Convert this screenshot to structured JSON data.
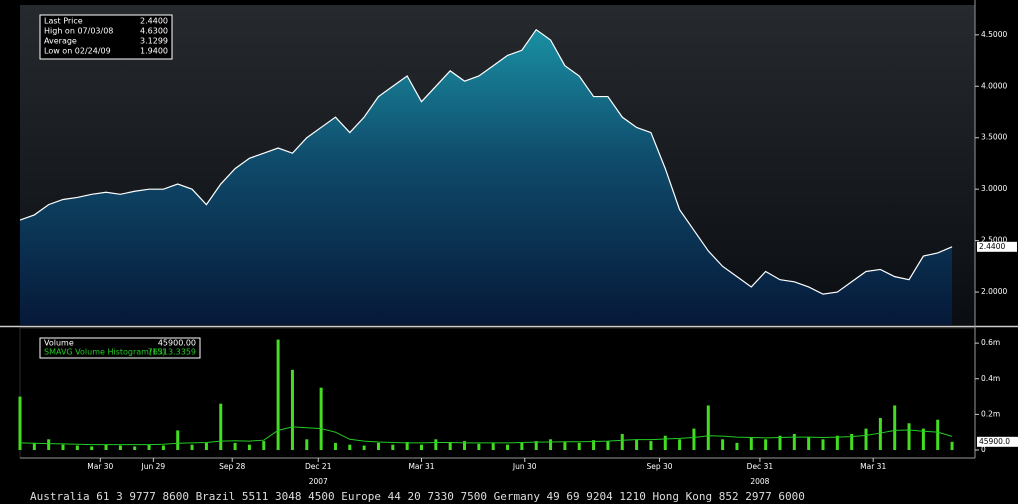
{
  "chart_data": [
    {
      "type": "area",
      "color": "#ffffff",
      "values": [
        2.7,
        2.75,
        2.85,
        2.9,
        2.92,
        2.95,
        2.97,
        2.95,
        2.98,
        3.0,
        3.0,
        3.05,
        3.0,
        2.85,
        3.05,
        3.2,
        3.3,
        3.35,
        3.4,
        3.35,
        3.5,
        3.6,
        3.7,
        3.55,
        3.7,
        3.9,
        4.0,
        4.1,
        3.85,
        4.0,
        4.15,
        4.05,
        4.1,
        4.2,
        4.3,
        4.35,
        4.55,
        4.45,
        4.2,
        4.1,
        3.9,
        3.9,
        3.7,
        3.6,
        3.55,
        3.2,
        2.8,
        2.6,
        2.4,
        2.25,
        2.15,
        2.05,
        2.2,
        2.12,
        2.1,
        2.05,
        1.98,
        2.0,
        2.1,
        2.2,
        2.22,
        2.15,
        2.12,
        2.35,
        2.38,
        2.44
      ],
      "xlim": [
        0,
        66.6
      ],
      "ylim": [
        1.68,
        4.79
      ],
      "yticks": [
        {
          "value": 2.0,
          "label": "2.0000"
        },
        {
          "value": 2.5,
          "label": "2.5000"
        },
        {
          "value": 3.0,
          "label": "3.0000"
        },
        {
          "value": 3.5,
          "label": "3.5000"
        },
        {
          "value": 4.0,
          "label": "4.0000"
        },
        {
          "value": 4.5,
          "label": "4.5000"
        }
      ],
      "xticks": [
        {
          "value": 5.6,
          "label": "Mar 30"
        },
        {
          "value": 9.3,
          "label": "Jun 29"
        },
        {
          "value": 14.8,
          "label": "Sep 28"
        },
        {
          "value": 20.8,
          "label": "Dec 21"
        },
        {
          "value": 28.0,
          "label": "Mar 31"
        },
        {
          "value": 35.2,
          "label": "Jun 30"
        },
        {
          "value": 44.6,
          "label": "Sep 30"
        },
        {
          "value": 51.6,
          "label": "Dec 31"
        },
        {
          "value": 59.5,
          "label": "Mar 31"
        }
      ],
      "year_ticks": [
        {
          "value": 20.8,
          "label": "2007"
        },
        {
          "value": 51.6,
          "label": "2008"
        }
      ],
      "legend": [
        {
          "label": "Last Price",
          "value": "2.4400"
        },
        {
          "label": "High on 07/03/08",
          "value": "4.6300"
        },
        {
          "label": "Average",
          "value": "3.1299"
        },
        {
          "label": "Low on 02/24/09",
          "value": "1.9400"
        }
      ],
      "last_label": "2.4400"
    },
    {
      "type": "bar",
      "series": [
        {
          "name": "Volume",
          "color": "#44dd22",
          "legend_value": "45900.00",
          "values": [
            300000,
            40000,
            60000,
            30000,
            25000,
            20000,
            30000,
            25000,
            20000,
            30000,
            25000,
            110000,
            30000,
            40000,
            260000,
            40000,
            30000,
            50000,
            620000,
            450000,
            60000,
            350000,
            40000,
            30000,
            25000,
            40000,
            30000,
            45000,
            30000,
            60000,
            40000,
            50000,
            35000,
            40000,
            30000,
            40000,
            50000,
            60000,
            45000,
            40000,
            55000,
            50000,
            90000,
            60000,
            50000,
            80000,
            60000,
            120000,
            250000,
            60000,
            40000,
            70000,
            60000,
            80000,
            90000,
            70000,
            60000,
            80000,
            90000,
            120000,
            180000,
            250000,
            150000,
            120000,
            170000,
            45900
          ]
        },
        {
          "name": "SMAVG Volume Histogram(15)",
          "color": "#22cc22",
          "legend_value": "76313.3359",
          "values": [
            40000,
            38000,
            36000,
            34000,
            32000,
            30000,
            30000,
            30000,
            30000,
            30000,
            32000,
            38000,
            40000,
            42000,
            50000,
            52000,
            50000,
            55000,
            110000,
            130000,
            125000,
            120000,
            100000,
            60000,
            50000,
            45000,
            42000,
            40000,
            40000,
            42000,
            42000,
            40000,
            40000,
            40000,
            40000,
            42000,
            44000,
            45000,
            46000,
            46000,
            48000,
            50000,
            55000,
            58000,
            58000,
            62000,
            65000,
            70000,
            80000,
            78000,
            72000,
            70000,
            68000,
            70000,
            72000,
            72000,
            70000,
            72000,
            75000,
            82000,
            95000,
            110000,
            112000,
            105000,
            100000,
            76313.3359
          ]
        }
      ],
      "xlim": [
        0,
        66.6
      ],
      "ylim": [
        -45000,
        685000
      ],
      "yticks": [
        0,
        {
          "value": 200000,
          "label": "0.2m"
        },
        {
          "value": 400000,
          "label": "0.4m"
        },
        {
          "value": 600000,
          "label": "0.6m"
        }
      ],
      "last_label": "45900.0"
    }
  ],
  "footer": "Australia 61 3 9777 8600 Brazil 5511 3048 4500 Europe 44 20 7330 7500 Germany 49 69 9204 1210 Hong Kong 852 2977 6000"
}
